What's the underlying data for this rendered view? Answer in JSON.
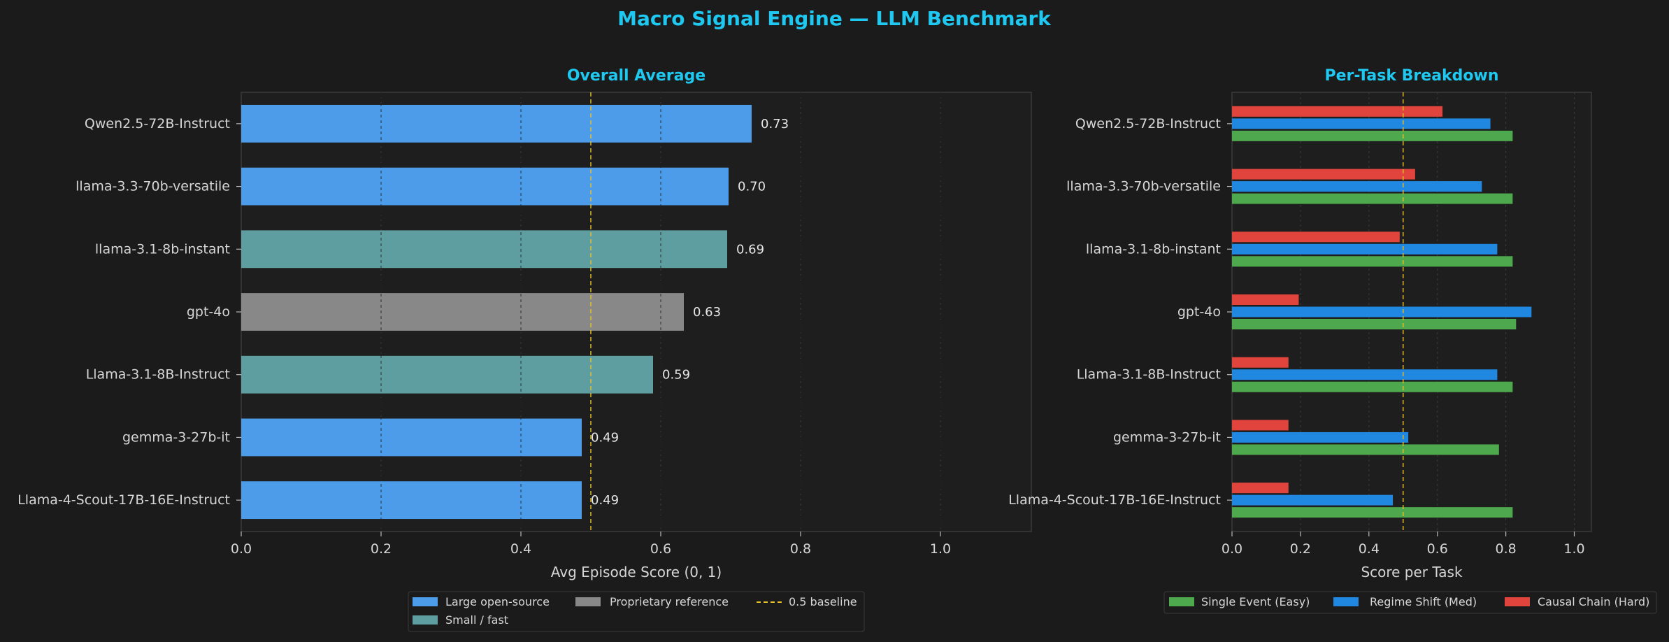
{
  "suptitle": "Macro Signal Engine — LLM Benchmark",
  "colors": {
    "background": "#1b1b1b",
    "panel_bg": "#1e1e1e",
    "title": "#1fc8f0",
    "text": "#d6d6d6",
    "large_open_source": "#4d9ce9",
    "small_fast": "#5f9ea0",
    "proprietary": "#888888",
    "baseline": "#e8c12a",
    "single_event": "#4ea84e",
    "regime_shift": "#2088e0",
    "causal_chain": "#e0443c"
  },
  "chart_data": [
    {
      "type": "bar",
      "orientation": "horizontal",
      "title": "Overall Average",
      "xlabel": "Avg Episode Score  (0, 1)",
      "xlim": [
        0,
        1.13
      ],
      "xticks": [
        "0.0",
        "0.2",
        "0.4",
        "0.6",
        "0.8",
        "1.0"
      ],
      "tick_values": [
        0,
        0.2,
        0.4,
        0.6,
        0.8,
        1.0
      ],
      "baseline": 0.5,
      "categories": [
        "Qwen2.5-72B-Instruct",
        "llama-3.3-70b-versatile",
        "llama-3.1-8b-instant",
        "gpt-4o",
        "Llama-3.1-8B-Instruct",
        "gemma-3-27b-it",
        "Llama-4-Scout-17B-16E-Instruct"
      ],
      "values": [
        0.73,
        0.697,
        0.695,
        0.633,
        0.589,
        0.487,
        0.487
      ],
      "value_labels": [
        "0.73",
        "0.70",
        "0.69",
        "0.63",
        "0.59",
        "0.49",
        "0.49"
      ],
      "groups": [
        "large",
        "large",
        "small",
        "proprietary",
        "small",
        "large",
        "large"
      ],
      "legend": {
        "placement": "bottom-center",
        "items": [
          {
            "label": "Large open-source",
            "kind": "patch",
            "color_key": "large_open_source"
          },
          {
            "label": "Small / fast",
            "kind": "patch",
            "color_key": "small_fast"
          },
          {
            "label": "Proprietary reference",
            "kind": "patch",
            "color_key": "proprietary"
          },
          {
            "label": "0.5 baseline",
            "kind": "dashed",
            "color_key": "baseline"
          }
        ]
      }
    },
    {
      "type": "bar",
      "orientation": "horizontal-grouped",
      "title": "Per-Task Breakdown",
      "xlabel": "Score per Task",
      "xlim": [
        0,
        1.05
      ],
      "xticks": [
        "0.0",
        "0.2",
        "0.4",
        "0.6",
        "0.8",
        "1.0"
      ],
      "tick_values": [
        0,
        0.2,
        0.4,
        0.6,
        0.8,
        1.0
      ],
      "baseline": 0.5,
      "categories": [
        "Qwen2.5-72B-Instruct",
        "llama-3.3-70b-versatile",
        "llama-3.1-8b-instant",
        "gpt-4o",
        "Llama-3.1-8B-Instruct",
        "gemma-3-27b-it",
        "Llama-4-Scout-17B-16E-Instruct"
      ],
      "series": [
        {
          "name": "Single Event (Easy)",
          "color_key": "single_event",
          "values": [
            0.82,
            0.82,
            0.82,
            0.83,
            0.82,
            0.78,
            0.82
          ]
        },
        {
          "name": "Regime Shift (Med)",
          "color_key": "regime_shift",
          "values": [
            0.755,
            0.73,
            0.775,
            0.875,
            0.775,
            0.515,
            0.47
          ]
        },
        {
          "name": "Causal Chain (Hard)",
          "color_key": "causal_chain",
          "values": [
            0.615,
            0.535,
            0.49,
            0.195,
            0.165,
            0.165,
            0.165
          ]
        }
      ],
      "legend": {
        "placement": "bottom-center"
      }
    }
  ]
}
